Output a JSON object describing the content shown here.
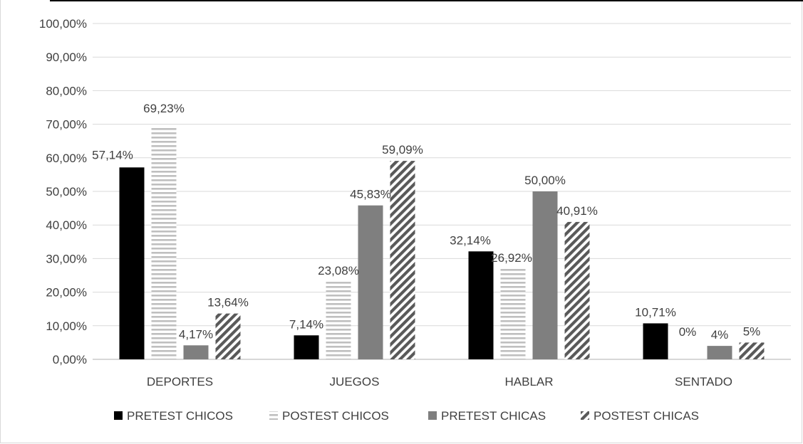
{
  "chart_data": {
    "type": "bar",
    "categories": [
      "DEPORTES",
      "JUEGOS",
      "HABLAR",
      "SENTADO"
    ],
    "series": [
      {
        "name": "PRETEST CHICOS",
        "values": [
          57.14,
          7.14,
          32.14,
          10.71
        ],
        "labels": [
          "57,14%",
          "7,14%",
          "32,14%",
          "10,71%"
        ],
        "fill": "solid-black"
      },
      {
        "name": "POSTEST CHICOS",
        "values": [
          69.23,
          23.08,
          26.92,
          0
        ],
        "labels": [
          "69,23%",
          "23,08%",
          "26,92%",
          "0%"
        ],
        "fill": "horizontal-stripes"
      },
      {
        "name": "PRETEST CHICAS",
        "values": [
          4.17,
          45.83,
          50.0,
          4
        ],
        "labels": [
          "4,17%",
          "45,83%",
          "50,00%",
          "4%"
        ],
        "fill": "solid-gray"
      },
      {
        "name": "POSTEST CHICAS",
        "values": [
          13.64,
          59.09,
          40.91,
          5
        ],
        "labels": [
          "13,64%",
          "59,09%",
          "40,91%",
          "5%"
        ],
        "fill": "diagonal-stripes"
      }
    ],
    "y_ticks": [
      "0,00%",
      "10,00%",
      "20,00%",
      "30,00%",
      "40,00%",
      "50,00%",
      "60,00%",
      "70,00%",
      "80,00%",
      "90,00%",
      "100,00%"
    ],
    "ylim": [
      0,
      100
    ],
    "grid": true,
    "legend_position": "bottom",
    "colors": {
      "black": "#000000",
      "gray": "#7f7f7f",
      "stripe": "#bfbfbf",
      "diag": "#595959",
      "grid": "#d9d9d9",
      "text": "#404040"
    }
  }
}
